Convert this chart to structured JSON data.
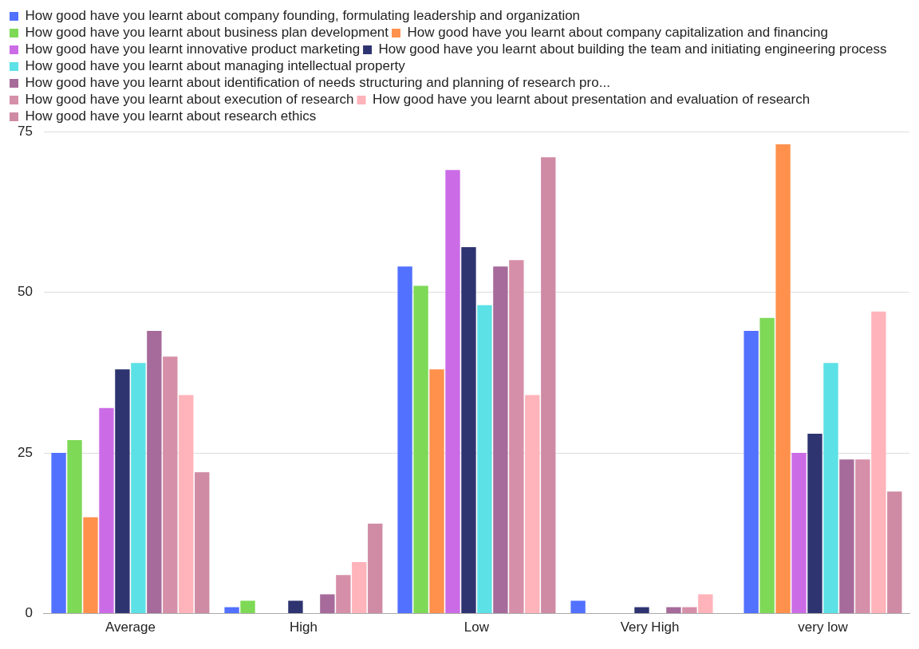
{
  "chart_data": {
    "type": "bar",
    "categories": [
      "Average",
      "High",
      "Low",
      "Very High",
      "very low"
    ],
    "series": [
      {
        "name": "How good have you learnt about company founding, formulating leadership and organization",
        "color": "#5271ff",
        "values": [
          25,
          1,
          54,
          2,
          44
        ]
      },
      {
        "name": "How good have you learnt about business plan development",
        "color": "#7ed957",
        "values": [
          27,
          2,
          51,
          0,
          46
        ]
      },
      {
        "name": "How good have you learnt about company capitalization and financing",
        "color": "#ff914d",
        "values": [
          15,
          0,
          38,
          0,
          73
        ]
      },
      {
        "name": "How good have you learnt innovative product marketing",
        "color": "#cb6ce6",
        "values": [
          32,
          0,
          69,
          0,
          25
        ]
      },
      {
        "name": "How good have you learnt about building the team and initiating engineering process",
        "color": "#2e3470",
        "values": [
          38,
          2,
          57,
          1,
          28
        ]
      },
      {
        "name": "How good have you learnt about managing intellectual property",
        "color": "#5ce1e6",
        "values": [
          39,
          0,
          48,
          0,
          39
        ]
      },
      {
        "name": "How good have you learnt about identification of needs structuring and planning of research pro...",
        "color": "#a66b9a",
        "values": [
          44,
          3,
          54,
          1,
          24
        ]
      },
      {
        "name": "How good have you learnt about execution of research",
        "color": "#d68fa8",
        "values": [
          40,
          6,
          55,
          1,
          24
        ]
      },
      {
        "name": "How good have you learnt about presentation and evaluation of research",
        "color": "#ffb3ba",
        "values": [
          34,
          8,
          34,
          3,
          47
        ]
      },
      {
        "name": "How good have you learnt about research ethics",
        "color": "#cf8ba4",
        "values": [
          22,
          14,
          71,
          0,
          19
        ]
      }
    ],
    "ylim": [
      0,
      75
    ],
    "yticks": [
      0,
      25,
      50,
      75
    ],
    "grid": "y",
    "legend": "top left"
  }
}
